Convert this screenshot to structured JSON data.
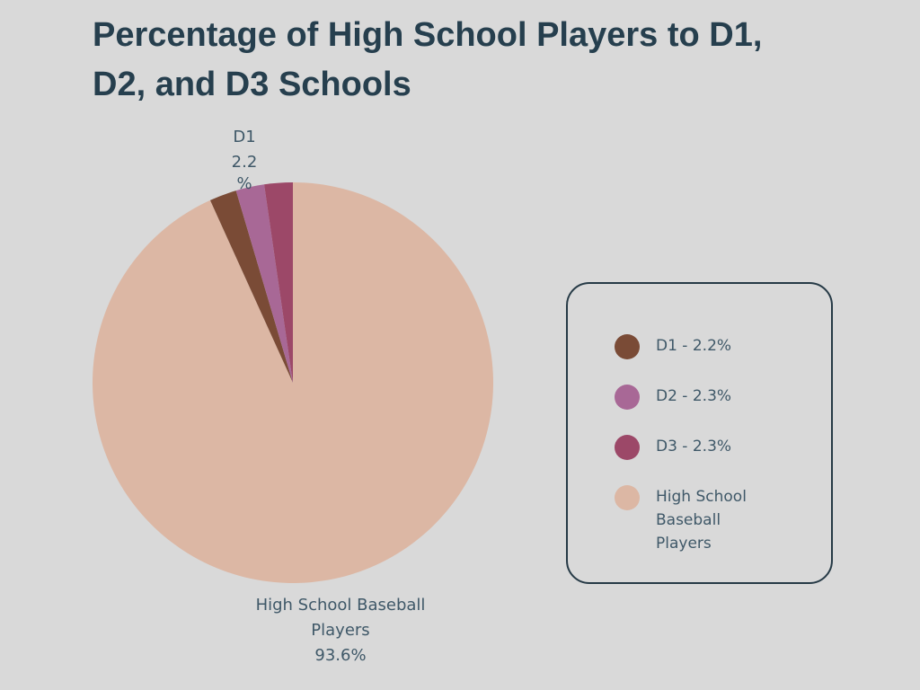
{
  "title": "Percentage of High School Players to D1, D2, and D3 Schools",
  "chart_data": {
    "type": "pie",
    "title": "Percentage of High School Players to D1, D2, and D3 Schools",
    "slices": [
      {
        "name": "High School Baseball Players",
        "value": 93.6,
        "color": "#dcb7a4",
        "label": [
          "High School Baseball",
          "Players",
          "93.6%"
        ]
      },
      {
        "name": "D1",
        "value": 2.2,
        "color": "#7a4b36",
        "label": [
          "D1",
          "2.2",
          "%"
        ]
      },
      {
        "name": "D2",
        "value": 2.3,
        "color": "#a86896",
        "label": []
      },
      {
        "name": "D3",
        "value": 2.3,
        "color": "#9c4868",
        "label": []
      }
    ],
    "legend": {
      "placement": "right",
      "entries": [
        "D1 - 2.2%",
        "D2 - 2.3%",
        "D3 - 2.3%",
        "High School Baseball Players"
      ]
    }
  }
}
